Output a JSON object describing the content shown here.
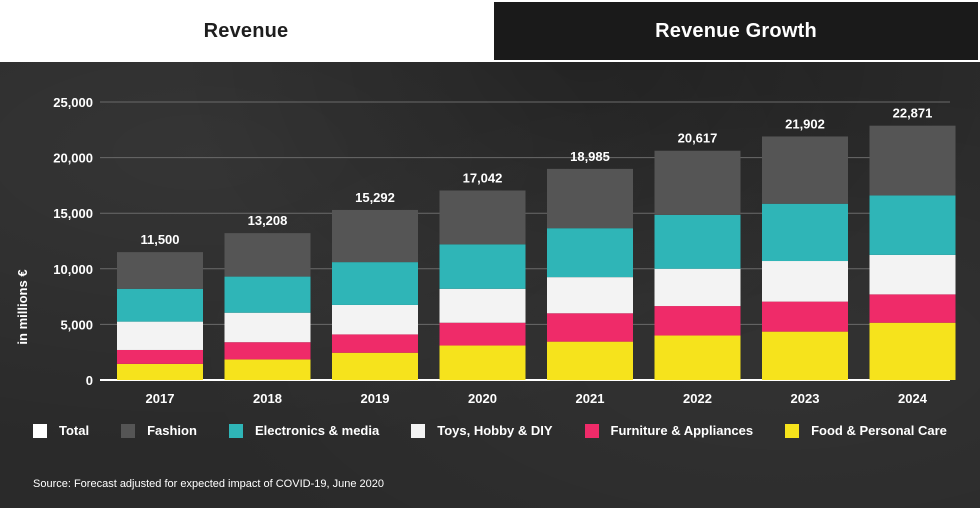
{
  "tabs": {
    "revenue": "Revenue",
    "growth": "Revenue Growth"
  },
  "colors": {
    "total": "#ffffff",
    "fashion": "#555555",
    "electronics": "#2fb5b7",
    "toys": "#f3f3f3",
    "furniture": "#ef2b69",
    "food": "#f6e31c"
  },
  "legend": [
    {
      "key": "total",
      "label": "Total"
    },
    {
      "key": "fashion",
      "label": "Fashion"
    },
    {
      "key": "electronics",
      "label": "Electronics & media"
    },
    {
      "key": "toys",
      "label": "Toys, Hobby & DIY"
    },
    {
      "key": "furniture",
      "label": "Furniture & Appliances"
    },
    {
      "key": "food",
      "label": "Food & Personal Care"
    }
  ],
  "source": "Source: Forecast adjusted for expected impact of COVID-19, June 2020",
  "chart_data": {
    "type": "bar",
    "stacked": true,
    "title": "Revenue",
    "ylabel": "in millions €",
    "xlabel": "",
    "ylim": [
      0,
      25000
    ],
    "yticks": [
      0,
      5000,
      10000,
      15000,
      20000,
      25000
    ],
    "ytick_labels": [
      "0",
      "5,000",
      "10,000",
      "15,000",
      "20,000",
      "25,000"
    ],
    "grid": true,
    "categories": [
      "2017",
      "2018",
      "2019",
      "2020",
      "2021",
      "2022",
      "2023",
      "2024"
    ],
    "totals": [
      11500,
      13208,
      15292,
      17042,
      18985,
      20617,
      21902,
      22871
    ],
    "total_labels": [
      "11,500",
      "13,208",
      "15,292",
      "17,042",
      "18,985",
      "20,617",
      "21,902",
      "22,871"
    ],
    "series": [
      {
        "key": "food",
        "name": "Food & Personal Care",
        "values": [
          1450,
          1850,
          2450,
          3100,
          3450,
          4000,
          4350,
          5150
        ]
      },
      {
        "key": "furniture",
        "name": "Furniture & Appliances",
        "values": [
          1250,
          1550,
          1650,
          2050,
          2550,
          2650,
          2700,
          2550
        ]
      },
      {
        "key": "toys",
        "name": "Toys, Hobby & DIY",
        "values": [
          2550,
          2650,
          2650,
          3050,
          3250,
          3350,
          3650,
          3550
        ]
      },
      {
        "key": "electronics",
        "name": "Electronics & media",
        "values": [
          2950,
          3250,
          3850,
          4000,
          4400,
          4850,
          5150,
          5350
        ]
      },
      {
        "key": "fashion",
        "name": "Fashion",
        "values": [
          3300,
          3908,
          4692,
          4842,
          5335,
          5767,
          6052,
          6271
        ]
      }
    ]
  }
}
